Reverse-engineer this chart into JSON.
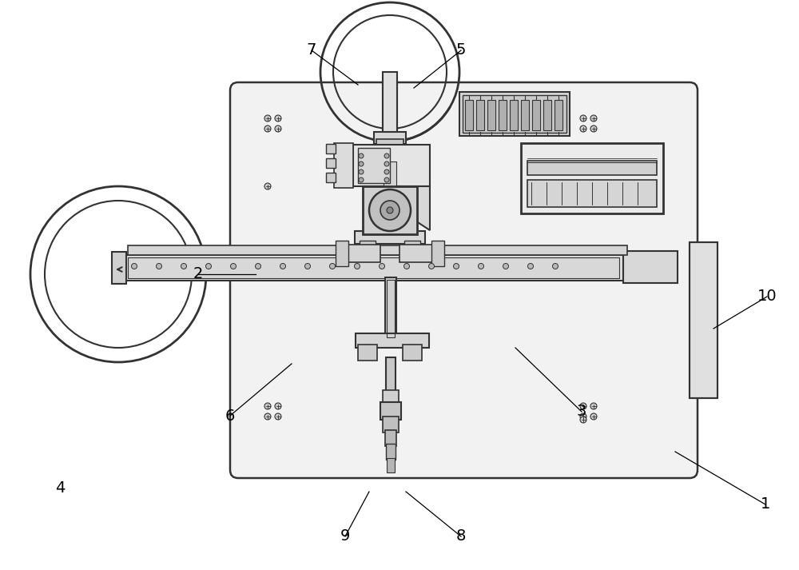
{
  "bg_color": "#ffffff",
  "dc": "#333333",
  "fig_width": 10.0,
  "fig_height": 7.13,
  "labels": [
    [
      "1",
      958,
      82,
      845,
      148
    ],
    [
      "2",
      248,
      370,
      320,
      370
    ],
    [
      "3",
      728,
      198,
      645,
      278
    ],
    [
      "4",
      75,
      102,
      75,
      102
    ],
    [
      "5",
      577,
      650,
      518,
      603
    ],
    [
      "6",
      288,
      193,
      365,
      258
    ],
    [
      "7",
      390,
      650,
      448,
      607
    ],
    [
      "8",
      577,
      42,
      508,
      98
    ],
    [
      "9",
      432,
      42,
      462,
      98
    ],
    [
      "10",
      960,
      342,
      893,
      302
    ]
  ]
}
